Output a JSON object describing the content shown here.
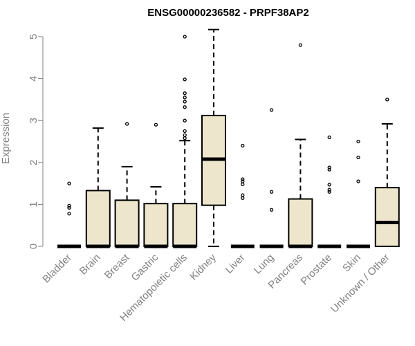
{
  "chart_data": {
    "type": "boxplot",
    "title": "ENSG00000236582 - PRPF38AP2",
    "ylabel": "Expression",
    "xlabel": "",
    "ylim": [
      0,
      5.2
    ],
    "yticks": [
      0,
      1,
      2,
      3,
      4,
      5
    ],
    "box_fill": "#ede6cc",
    "axis_color": "#808080",
    "categories": [
      "Bladder",
      "Brain",
      "Breast",
      "Gastric",
      "Hematopoietic cells",
      "Kidney",
      "Liver",
      "Lung",
      "Pancreas",
      "Prostate",
      "Skin",
      "Unknown / Other"
    ],
    "boxes": [
      {
        "q1": 0,
        "median": 0,
        "q3": 0,
        "whisker_low": 0,
        "whisker_high": 0,
        "outliers": [
          1.5,
          0.97,
          0.92,
          0.78
        ]
      },
      {
        "q1": 0,
        "median": 0,
        "q3": 1.33,
        "whisker_low": 0,
        "whisker_high": 2.82,
        "outliers": []
      },
      {
        "q1": 0,
        "median": 0,
        "q3": 1.1,
        "whisker_low": 0,
        "whisker_high": 1.9,
        "outliers": [
          2.92
        ]
      },
      {
        "q1": 0,
        "median": 0,
        "q3": 1.02,
        "whisker_low": 0,
        "whisker_high": 1.42,
        "outliers": [
          2.9
        ]
      },
      {
        "q1": 0,
        "median": 0,
        "q3": 1.02,
        "whisker_low": 0,
        "whisker_high": 2.52,
        "outliers": [
          5.0,
          3.98,
          3.65,
          3.55,
          3.45,
          3.32,
          3.0,
          2.75,
          2.65,
          2.58
        ]
      },
      {
        "q1": 0.98,
        "median": 2.08,
        "q3": 3.12,
        "whisker_low": 0,
        "whisker_high": 5.17,
        "outliers": []
      },
      {
        "q1": 0,
        "median": 0,
        "q3": 0,
        "whisker_low": 0,
        "whisker_high": 0,
        "outliers": [
          2.4,
          1.6,
          1.55,
          1.48,
          1.22,
          1.15
        ]
      },
      {
        "q1": 0,
        "median": 0,
        "q3": 0,
        "whisker_low": 0,
        "whisker_high": 0,
        "outliers": [
          3.25,
          1.3,
          0.87
        ]
      },
      {
        "q1": 0,
        "median": 0,
        "q3": 1.13,
        "whisker_low": 0,
        "whisker_high": 2.55,
        "outliers": [
          4.8
        ]
      },
      {
        "q1": 0,
        "median": 0,
        "q3": 0,
        "whisker_low": 0,
        "whisker_high": 0,
        "outliers": [
          2.6,
          1.88,
          1.83,
          1.47,
          1.35,
          1.3
        ]
      },
      {
        "q1": 0,
        "median": 0,
        "q3": 0,
        "whisker_low": 0,
        "whisker_high": 0,
        "outliers": [
          2.5,
          2.12,
          1.55
        ]
      },
      {
        "q1": 0,
        "median": 0.57,
        "q3": 1.4,
        "whisker_low": 0,
        "whisker_high": 2.92,
        "outliers": [
          3.5
        ]
      }
    ]
  }
}
